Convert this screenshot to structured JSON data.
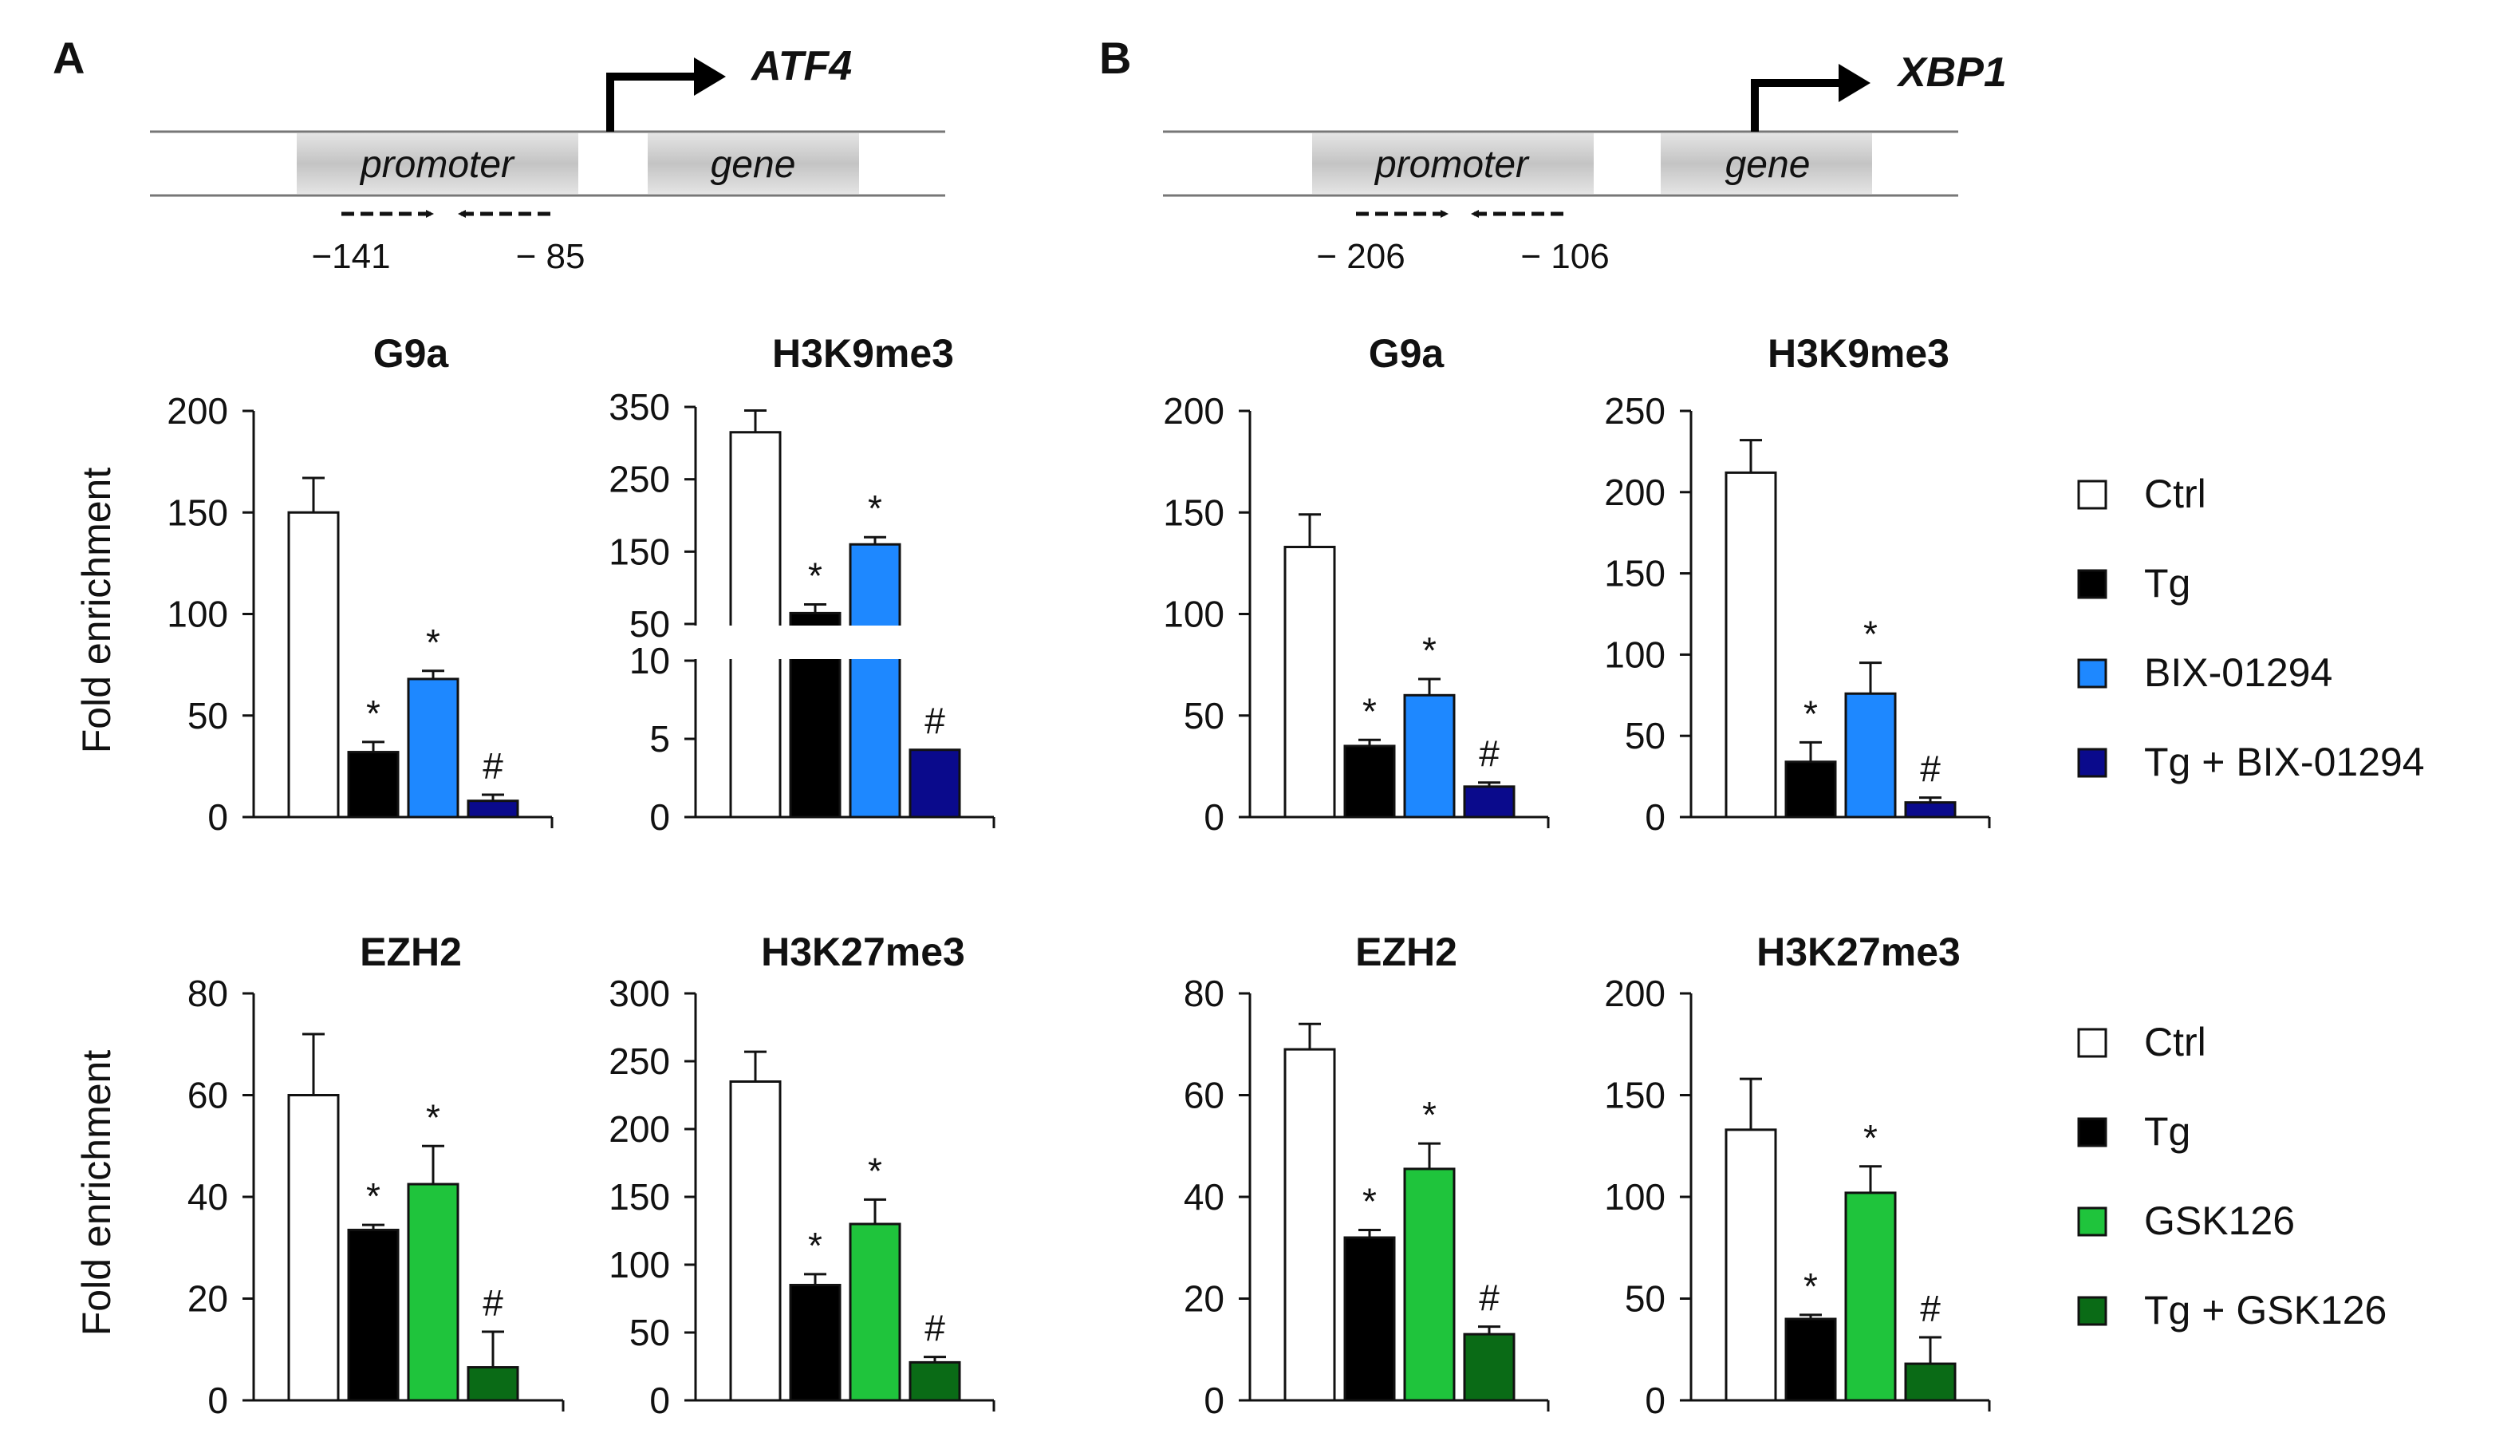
{
  "panels": {
    "A": {
      "letter": "A",
      "gene_name": "ATF4",
      "promoter_label": "promoter",
      "gene_label": "gene",
      "primer_left": "−141",
      "primer_right": "− 85"
    },
    "B": {
      "letter": "B",
      "gene_name": "XBP1",
      "promoter_label": "promoter",
      "gene_label": "gene",
      "primer_left": "− 206",
      "primer_right": "− 106"
    }
  },
  "ylabel_text": "Fold enrichment",
  "legend_bix": {
    "items": [
      {
        "label": "Ctrl",
        "color": "#ffffff"
      },
      {
        "label": "Tg",
        "color": "#000000"
      },
      {
        "label": "BIX-01294",
        "color": "#1e88ff"
      },
      {
        "label": "Tg + BIX-01294",
        "color": "#0a0a8c"
      }
    ]
  },
  "legend_gsk": {
    "items": [
      {
        "label": "Ctrl",
        "color": "#ffffff"
      },
      {
        "label": "Tg",
        "color": "#000000"
      },
      {
        "label": "GSK126",
        "color": "#1fc43c"
      },
      {
        "label": "Tg + GSK126",
        "color": "#0a6b16"
      }
    ]
  },
  "chart_data": [
    {
      "id": "A-G9a",
      "type": "bar",
      "title": "G9a",
      "ylabel": "Fold enrichment",
      "categories": [
        "Ctrl",
        "Tg",
        "BIX-01294",
        "Tg + BIX-01294"
      ],
      "values": [
        150,
        32,
        68,
        8
      ],
      "errors": [
        17,
        5,
        4,
        3
      ],
      "annotations": [
        "",
        "*",
        "*",
        "#"
      ],
      "colors": [
        "#ffffff",
        "#000000",
        "#1e88ff",
        "#0a0a8c"
      ],
      "ylim": [
        0,
        200
      ],
      "yticks": [
        "0",
        "50",
        "100",
        "150",
        "200"
      ]
    },
    {
      "id": "A-H3K9me3",
      "type": "bar",
      "title": "H3K9me3",
      "broken_axis": true,
      "categories": [
        "Ctrl",
        "Tg",
        "BIX-01294",
        "Tg + BIX-01294"
      ],
      "values": [
        315,
        65,
        160,
        4.3
      ],
      "errors": [
        30,
        12,
        10,
        0
      ],
      "annotations": [
        "",
        "*",
        "*",
        "#"
      ],
      "colors": [
        "#ffffff",
        "#000000",
        "#1e88ff",
        "#0a0a8c"
      ],
      "lower_ylim": [
        0,
        10
      ],
      "lower_yticks": [
        "0",
        "5",
        "10"
      ],
      "upper_ylim": [
        50,
        350
      ],
      "upper_yticks": [
        "50",
        "150",
        "250",
        "350"
      ]
    },
    {
      "id": "B-G9a",
      "type": "bar",
      "title": "G9a",
      "categories": [
        "Ctrl",
        "Tg",
        "BIX-01294",
        "Tg + BIX-01294"
      ],
      "values": [
        133,
        35,
        60,
        15
      ],
      "errors": [
        16,
        3,
        8,
        2
      ],
      "annotations": [
        "",
        "*",
        "*",
        "#"
      ],
      "colors": [
        "#ffffff",
        "#000000",
        "#1e88ff",
        "#0a0a8c"
      ],
      "ylim": [
        0,
        200
      ],
      "yticks": [
        "0",
        "50",
        "100",
        "150",
        "200"
      ]
    },
    {
      "id": "B-H3K9me3",
      "type": "bar",
      "title": "H3K9me3",
      "categories": [
        "Ctrl",
        "Tg",
        "BIX-01294",
        "Tg + BIX-01294"
      ],
      "values": [
        212,
        34,
        76,
        9
      ],
      "errors": [
        20,
        12,
        19,
        3
      ],
      "annotations": [
        "",
        "*",
        "*",
        "#"
      ],
      "colors": [
        "#ffffff",
        "#000000",
        "#1e88ff",
        "#0a0a8c"
      ],
      "ylim": [
        0,
        250
      ],
      "yticks": [
        "0",
        "50",
        "100",
        "150",
        "200",
        "250"
      ]
    },
    {
      "id": "A-EZH2",
      "type": "bar",
      "title": "EZH2",
      "ylabel": "Fold enrichment",
      "categories": [
        "Ctrl",
        "Tg",
        "GSK126",
        "Tg + GSK126"
      ],
      "values": [
        60,
        33.5,
        42.5,
        6.5
      ],
      "errors": [
        12,
        1,
        7.5,
        7
      ],
      "annotations": [
        "",
        "*",
        "*",
        "#"
      ],
      "colors": [
        "#ffffff",
        "#000000",
        "#1fc43c",
        "#0a6b16"
      ],
      "ylim": [
        0,
        80
      ],
      "yticks": [
        "0",
        "20",
        "40",
        "60",
        "80"
      ]
    },
    {
      "id": "A-H3K27me3",
      "type": "bar",
      "title": "H3K27me3",
      "categories": [
        "Ctrl",
        "Tg",
        "GSK126",
        "Tg + GSK126"
      ],
      "values": [
        235,
        85,
        130,
        28
      ],
      "errors": [
        22,
        8,
        18,
        4
      ],
      "annotations": [
        "",
        "*",
        "*",
        "#"
      ],
      "colors": [
        "#ffffff",
        "#000000",
        "#1fc43c",
        "#0a6b16"
      ],
      "ylim": [
        0,
        300
      ],
      "yticks": [
        "0",
        "50",
        "100",
        "150",
        "200",
        "250",
        "300"
      ]
    },
    {
      "id": "B-EZH2",
      "type": "bar",
      "title": "EZH2",
      "categories": [
        "Ctrl",
        "Tg",
        "GSK126",
        "Tg + GSK126"
      ],
      "values": [
        69,
        32,
        45.5,
        13
      ],
      "errors": [
        5,
        1.5,
        5,
        1.5
      ],
      "annotations": [
        "",
        "*",
        "*",
        "#"
      ],
      "colors": [
        "#ffffff",
        "#000000",
        "#1fc43c",
        "#0a6b16"
      ],
      "ylim": [
        0,
        80
      ],
      "yticks": [
        "0",
        "20",
        "40",
        "60",
        "80"
      ]
    },
    {
      "id": "B-H3K27me3",
      "type": "bar",
      "title": "H3K27me3",
      "categories": [
        "Ctrl",
        "Tg",
        "GSK126",
        "Tg + GSK126"
      ],
      "values": [
        133,
        40,
        102,
        18
      ],
      "errors": [
        25,
        2,
        13,
        13
      ],
      "annotations": [
        "",
        "*",
        "*",
        "#"
      ],
      "colors": [
        "#ffffff",
        "#000000",
        "#1fc43c",
        "#0a6b16"
      ],
      "ylim": [
        0,
        200
      ],
      "yticks": [
        "0",
        "50",
        "100",
        "150",
        "200"
      ]
    }
  ]
}
